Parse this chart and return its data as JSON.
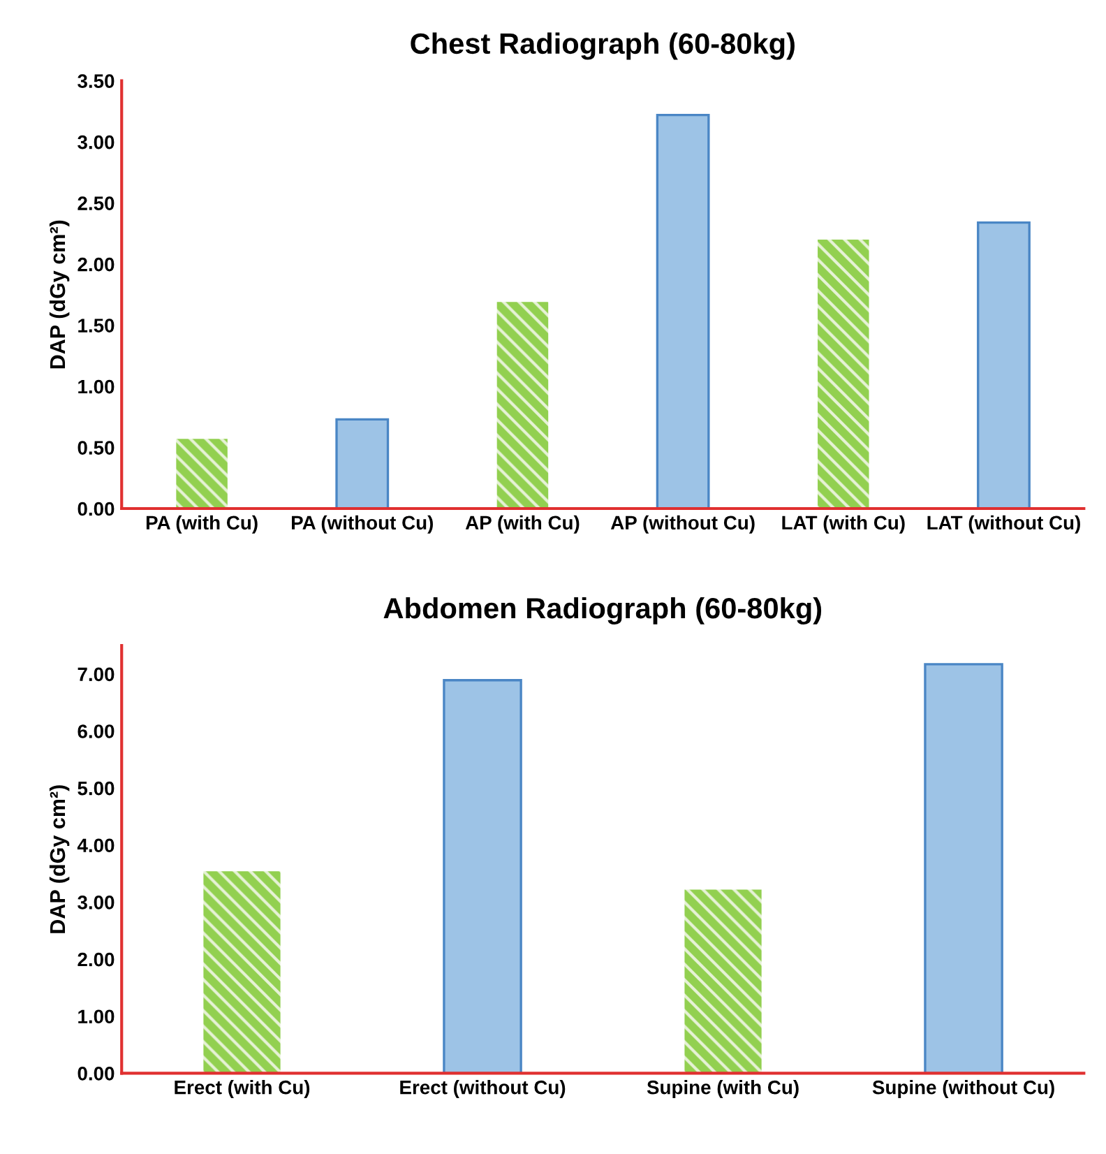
{
  "chart_data": [
    {
      "type": "bar",
      "title": "Chest Radiograph (60-80kg)",
      "ylabel": "DAP (dGy cm²)",
      "categories": [
        "PA (with Cu)",
        "PA (without Cu)",
        "AP (with Cu)",
        "AP (without Cu)",
        "LAT (with Cu)",
        "LAT (without Cu)"
      ],
      "values": [
        0.57,
        0.73,
        1.69,
        3.22,
        2.2,
        2.34
      ],
      "colors": [
        "#92d050",
        "#9dc3e6",
        "#92d050",
        "#9dc3e6",
        "#92d050",
        "#9dc3e6"
      ],
      "ylim": [
        0,
        3.5
      ],
      "yticks": [
        {
          "value": 0,
          "label": "0.00"
        },
        {
          "value": 0.5,
          "label": "0.50"
        },
        {
          "value": 1,
          "label": "1.00"
        },
        {
          "value": 1.5,
          "label": "1.50"
        },
        {
          "value": 2,
          "label": "2.00"
        },
        {
          "value": 2.5,
          "label": "2.50"
        },
        {
          "value": 3,
          "label": "3.00"
        },
        {
          "value": 3.5,
          "label": "3.50"
        }
      ],
      "grid": false
    },
    {
      "type": "bar",
      "title": "Abdomen Radiograph (60-80kg)",
      "ylabel": "DAP (dGy cm²)",
      "categories": [
        "Erect (with Cu)",
        "Erect (without Cu)",
        "Supine (with Cu)",
        "Supine (without Cu)"
      ],
      "values": [
        3.54,
        6.89,
        3.22,
        7.17
      ],
      "colors": [
        "#92d050",
        "#9dc3e6",
        "#92d050",
        "#9dc3e6"
      ],
      "ylim": [
        0,
        7.5
      ],
      "yticks": [
        {
          "value": 0,
          "label": "0.00"
        },
        {
          "value": 1,
          "label": "1.00"
        },
        {
          "value": 2,
          "label": "2.00"
        },
        {
          "value": 3,
          "label": "3.00"
        },
        {
          "value": 4,
          "label": "4.00"
        },
        {
          "value": 5,
          "label": "5.00"
        },
        {
          "value": 6,
          "label": "6.00"
        },
        {
          "value": 7,
          "label": "7.00"
        }
      ],
      "grid": false
    }
  ]
}
